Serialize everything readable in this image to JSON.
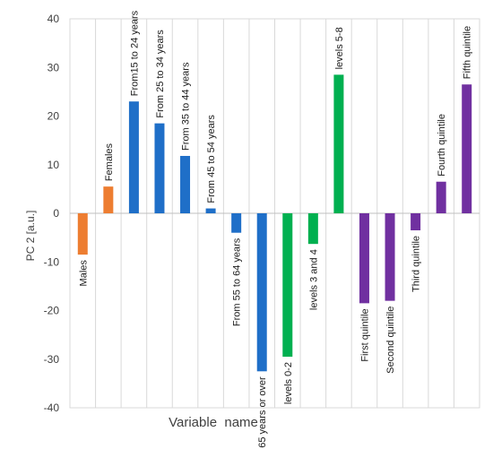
{
  "chart_data": {
    "type": "bar",
    "title": "",
    "xlabel": "Variable  name",
    "ylabel": "PC 2 [a.u.]",
    "ylim": [
      -40,
      40
    ],
    "yticks": [
      -40,
      -30,
      -20,
      -10,
      0,
      10,
      20,
      30,
      40
    ],
    "grid": "vertical category separators",
    "categories": [
      "Males",
      "Females",
      "From15 to 24 years",
      "From 25 to 34 years",
      "From 35 to 44 years",
      "From 45 to 54 years",
      "From 55 to 64 years",
      "65 years or over",
      "levels 0-2",
      "levels 3 and 4",
      "levels 5-8",
      "First quintile",
      "Second quintile",
      "Third quintile",
      "Fourth quintile",
      "Fifth quintile"
    ],
    "values": [
      -8.5,
      5.5,
      23.0,
      18.5,
      11.8,
      1.0,
      -4.0,
      -32.5,
      -29.5,
      -6.3,
      28.5,
      -18.5,
      -18.0,
      -3.5,
      6.5,
      26.5
    ],
    "colors": [
      "#ED7D31",
      "#ED7D31",
      "#1F6FC8",
      "#1F6FC8",
      "#1F6FC8",
      "#1F6FC8",
      "#1F6FC8",
      "#1F6FC8",
      "#00B050",
      "#00B050",
      "#00B050",
      "#7030A0",
      "#7030A0",
      "#7030A0",
      "#7030A0",
      "#7030A0"
    ]
  }
}
